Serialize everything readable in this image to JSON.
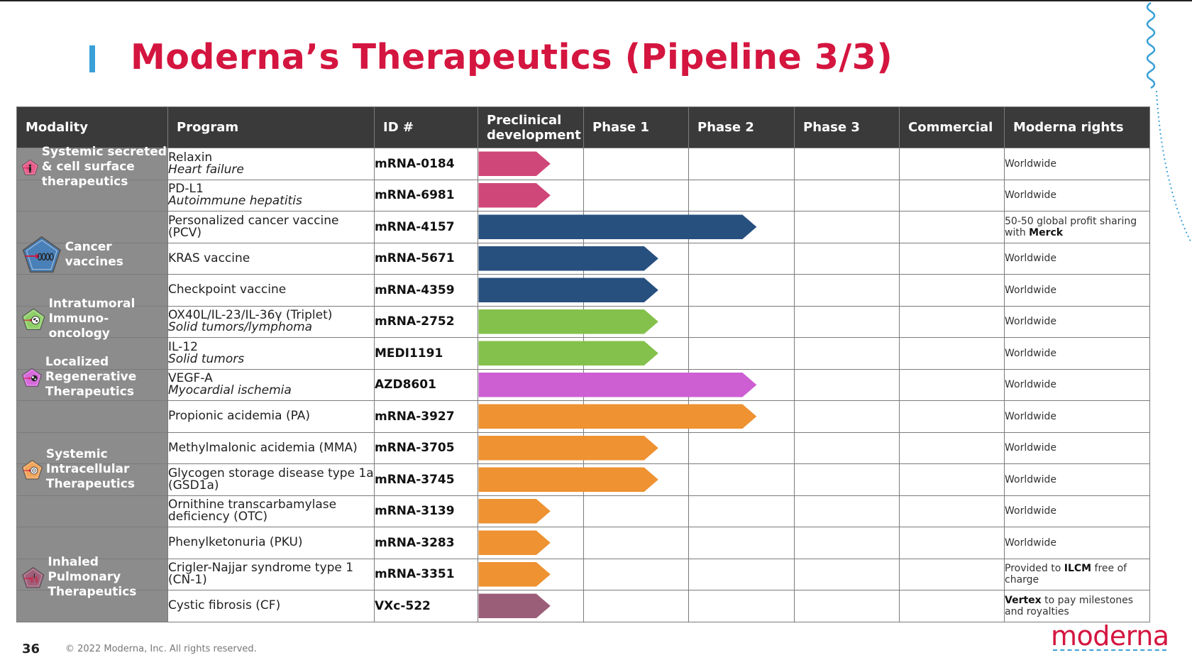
{
  "title": "Moderna’s Therapeutics (Pipeline 3/3)",
  "headers": {
    "modality": "Modality",
    "program": "Program",
    "id": "ID #",
    "preclinical": "Preclinical development",
    "phase1": "Phase 1",
    "phase2": "Phase 2",
    "phase3": "Phase 3",
    "commercial": "Commercial",
    "rights": "Moderna rights"
  },
  "modalities": [
    {
      "label": "Systemic secreted & cell surface therapeutics",
      "icon": "person-icon",
      "color": "#e75d8c"
    },
    {
      "label": "Cancer vaccines",
      "icon": "immune-cells-icon",
      "color": "#4a80b8"
    },
    {
      "label": "Intratumoral Immuno-oncology",
      "icon": "tumor-cell-icon",
      "color": "#8fcf68"
    },
    {
      "label": "Localized Regenerative Therapeutics",
      "icon": "heart-cell-icon",
      "color": "#d66adb"
    },
    {
      "label": "Systemic Intracellular Therapeutics",
      "icon": "cell-icon",
      "color": "#f2a55b"
    },
    {
      "label": "Inhaled Pulmonary Therapeutics",
      "icon": "lungs-icon",
      "color": "#a0607a"
    }
  ],
  "programs": [
    {
      "name": "Relaxin",
      "indication": "Heart failure",
      "id": "mRNA-0184",
      "rights": "Worldwide",
      "stage": 0.68,
      "color": "#cf4778"
    },
    {
      "name": "PD-L1",
      "indication": "Autoimmune hepatitis",
      "id": "mRNA-6981",
      "rights": "Worldwide",
      "stage": 0.68,
      "color": "#cf4778"
    },
    {
      "name": "Personalized cancer vaccine (PCV)",
      "indication": "",
      "id": "mRNA-4157",
      "rights_parts": [
        "50-50 global profit sharing with ",
        "Merck"
      ],
      "stage": 2.63,
      "color": "#27507f"
    },
    {
      "name": "KRAS vaccine",
      "indication": "",
      "id": "mRNA-5671",
      "rights": "Worldwide",
      "stage": 1.7,
      "color": "#27507f"
    },
    {
      "name": "Checkpoint vaccine",
      "indication": "",
      "id": "mRNA-4359",
      "rights": "Worldwide",
      "stage": 1.7,
      "color": "#27507f"
    },
    {
      "name": "OX40L/IL-23/IL-36γ (Triplet)",
      "indication": "Solid tumors/lymphoma",
      "id": "mRNA-2752",
      "rights": "Worldwide",
      "stage": 1.7,
      "color": "#84c14c"
    },
    {
      "name": "IL-12",
      "indication": "Solid tumors",
      "id": "MEDI1191",
      "rights": "Worldwide",
      "stage": 1.7,
      "color": "#84c14c"
    },
    {
      "name": "VEGF-A",
      "indication": "Myocardial ischemia",
      "id": "AZD8601",
      "rights": "Worldwide",
      "stage": 2.63,
      "color": "#cd5fd3"
    },
    {
      "name": "Propionic acidemia (PA)",
      "indication": "",
      "id": "mRNA-3927",
      "rights": "Worldwide",
      "stage": 2.63,
      "color": "#ee9232"
    },
    {
      "name": "Methylmalonic acidemia (MMA)",
      "indication": "",
      "id": "mRNA-3705",
      "rights": "Worldwide",
      "stage": 1.7,
      "color": "#ee9232"
    },
    {
      "name": "Glycogen storage disease type 1a (GSD1a)",
      "indication": "",
      "id": "mRNA-3745",
      "rights": "Worldwide",
      "stage": 1.7,
      "color": "#ee9232"
    },
    {
      "name": "Ornithine transcarbamylase deficiency (OTC)",
      "indication": "",
      "id": "mRNA-3139",
      "rights": "Worldwide",
      "stage": 0.68,
      "color": "#ee9232"
    },
    {
      "name": "Phenylketonuria (PKU)",
      "indication": "",
      "id": "mRNA-3283",
      "rights": "Worldwide",
      "stage": 0.68,
      "color": "#ee9232"
    },
    {
      "name": "Crigler-Najjar syndrome type 1 (CN-1)",
      "indication": "",
      "id": "mRNA-3351",
      "rights_parts": [
        "Provided to ",
        "ILCM",
        " free of charge"
      ],
      "stage": 0.68,
      "color": "#ee9232"
    },
    {
      "name": "Cystic fibrosis (CF)",
      "indication": "",
      "id": "VXc-522",
      "rights_parts": [
        "Vertex",
        " to pay milestones and royalties"
      ],
      "stage": 0.68,
      "color": "#9b5e78"
    }
  ],
  "footer": {
    "page": "36",
    "copyright": "© 2022 Moderna, Inc. All rights reserved.",
    "logo": "moderna"
  }
}
